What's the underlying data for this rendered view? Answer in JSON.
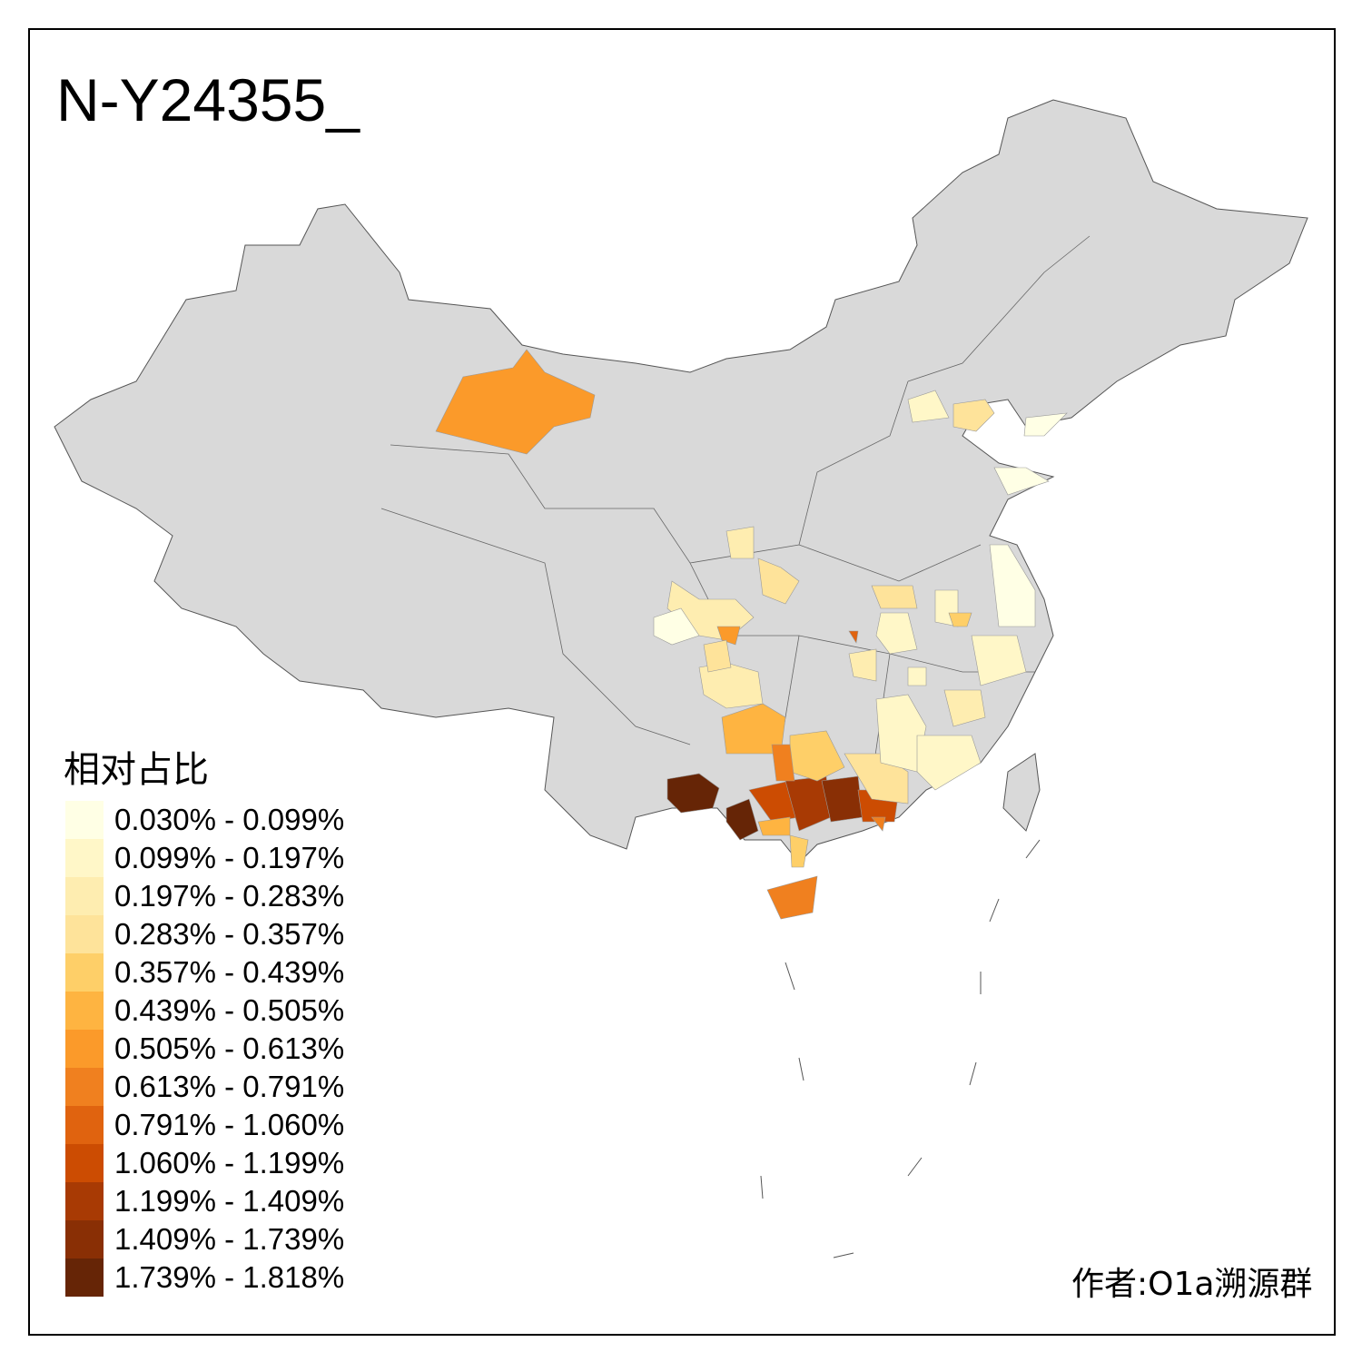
{
  "title": "N-Y24355_",
  "legend": {
    "title": "相对占比",
    "items": [
      {
        "label": "0.030% - 0.099%",
        "color": "#FFFFE5"
      },
      {
        "label": "0.099% - 0.197%",
        "color": "#FFF7C8"
      },
      {
        "label": "0.197% - 0.283%",
        "color": "#FEEDB0"
      },
      {
        "label": "0.283% - 0.357%",
        "color": "#FEE39A"
      },
      {
        "label": "0.357% - 0.439%",
        "color": "#FECF68"
      },
      {
        "label": "0.439% - 0.505%",
        "color": "#FEB441"
      },
      {
        "label": "0.505% - 0.613%",
        "color": "#FB9A2A"
      },
      {
        "label": "0.613% - 0.791%",
        "color": "#F0801F"
      },
      {
        "label": "0.791% - 1.060%",
        "color": "#E0630F"
      },
      {
        "label": "1.060% - 1.199%",
        "color": "#CC4C02"
      },
      {
        "label": "1.199% - 1.409%",
        "color": "#A83A04"
      },
      {
        "label": "1.409% - 1.739%",
        "color": "#892F05"
      },
      {
        "label": "1.739% - 1.818%",
        "color": "#662506"
      }
    ]
  },
  "no_data_color": "#D9D9D9",
  "author": "作者:O1a溯源群"
}
